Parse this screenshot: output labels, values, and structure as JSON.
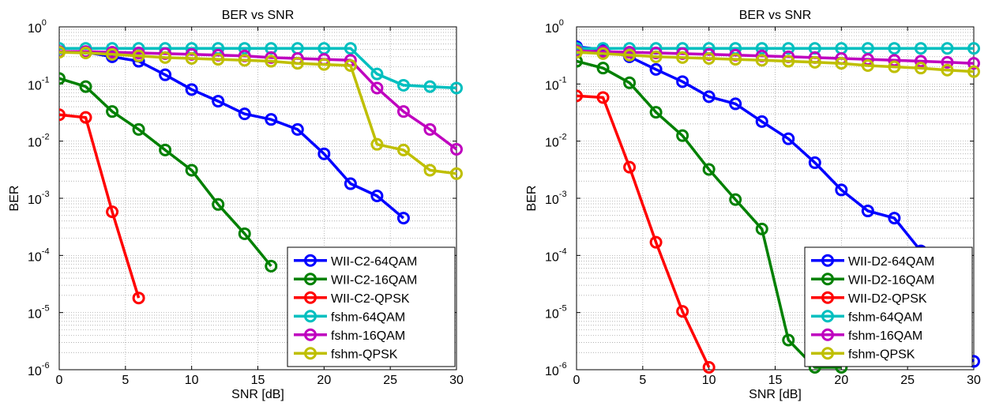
{
  "chart_data": [
    {
      "type": "line",
      "title": "BER vs SNR",
      "xlabel": "SNR [dB]",
      "ylabel": "BER",
      "xlim": [
        0,
        30
      ],
      "ylim": [
        1e-06,
        1
      ],
      "yscale": "log",
      "grid": true,
      "legend": "bottom-right",
      "x_ticks": [
        "0",
        "5",
        "10",
        "15",
        "20",
        "25",
        "30"
      ],
      "y_ticks": [
        {
          "base": "10",
          "exp": "-6"
        },
        {
          "base": "10",
          "exp": "-5"
        },
        {
          "base": "10",
          "exp": "-4"
        },
        {
          "base": "10",
          "exp": "-3"
        },
        {
          "base": "10",
          "exp": "-2"
        },
        {
          "base": "10",
          "exp": "-1"
        },
        {
          "base": "10",
          "exp": "0"
        }
      ],
      "series": [
        {
          "name": "WII-C2-64QAM",
          "color": "#0000ff",
          "x": [
            0,
            2,
            4,
            6,
            8,
            10,
            12,
            14,
            16,
            18,
            20,
            22,
            24,
            26
          ],
          "y": [
            0.37,
            0.36,
            0.3,
            0.25,
            0.145,
            0.08,
            0.05,
            0.03,
            0.024,
            0.016,
            0.006,
            0.0018,
            0.0011,
            0.00045
          ]
        },
        {
          "name": "WII-C2-16QAM",
          "color": "#008000",
          "x": [
            0,
            2,
            4,
            6,
            8,
            10,
            12,
            14,
            16
          ],
          "y": [
            0.125,
            0.09,
            0.033,
            0.016,
            0.007,
            0.0031,
            0.00078,
            0.00024,
            6.5e-05
          ]
        },
        {
          "name": "WII-C2-QPSK",
          "color": "#ff0000",
          "x": [
            0,
            2,
            4,
            6
          ],
          "y": [
            0.029,
            0.026,
            0.00058,
            1.8e-05
          ]
        },
        {
          "name": "fshm-64QAM",
          "color": "#00bfbf",
          "x": [
            0,
            2,
            4,
            6,
            8,
            10,
            12,
            14,
            16,
            18,
            20,
            22,
            24,
            26,
            28,
            30
          ],
          "y": [
            0.42,
            0.42,
            0.42,
            0.42,
            0.42,
            0.42,
            0.42,
            0.42,
            0.42,
            0.42,
            0.42,
            0.42,
            0.15,
            0.095,
            0.09,
            0.085
          ]
        },
        {
          "name": "fshm-16QAM",
          "color": "#bf00bf",
          "x": [
            0,
            2,
            4,
            6,
            8,
            10,
            12,
            14,
            16,
            18,
            20,
            22,
            24,
            26,
            28,
            30
          ],
          "y": [
            0.37,
            0.37,
            0.36,
            0.35,
            0.34,
            0.33,
            0.32,
            0.31,
            0.29,
            0.28,
            0.27,
            0.26,
            0.085,
            0.033,
            0.016,
            0.0072
          ]
        },
        {
          "name": "fshm-QPSK",
          "color": "#bfbf00",
          "x": [
            0,
            2,
            4,
            6,
            8,
            10,
            12,
            14,
            16,
            18,
            20,
            22,
            24,
            26,
            28,
            30
          ],
          "y": [
            0.36,
            0.35,
            0.33,
            0.31,
            0.29,
            0.28,
            0.27,
            0.26,
            0.25,
            0.23,
            0.22,
            0.21,
            0.0088,
            0.007,
            0.0031,
            0.0027
          ]
        }
      ]
    },
    {
      "type": "line",
      "title": "BER vs SNR",
      "xlabel": "SNR [dB]",
      "ylabel": "BER",
      "xlim": [
        0,
        30
      ],
      "ylim": [
        1e-06,
        1
      ],
      "yscale": "log",
      "grid": true,
      "legend": "bottom-right",
      "x_ticks": [
        "0",
        "5",
        "10",
        "15",
        "20",
        "25",
        "30"
      ],
      "y_ticks": [
        {
          "base": "10",
          "exp": "-6"
        },
        {
          "base": "10",
          "exp": "-5"
        },
        {
          "base": "10",
          "exp": "-4"
        },
        {
          "base": "10",
          "exp": "-3"
        },
        {
          "base": "10",
          "exp": "-2"
        },
        {
          "base": "10",
          "exp": "-1"
        },
        {
          "base": "10",
          "exp": "0"
        }
      ],
      "series": [
        {
          "name": "WII-D2-64QAM",
          "color": "#0000ff",
          "x": [
            0,
            2,
            4,
            6,
            8,
            10,
            12,
            14,
            16,
            18,
            20,
            22,
            24,
            26,
            28,
            30
          ],
          "y": [
            0.45,
            0.4,
            0.3,
            0.18,
            0.11,
            0.06,
            0.045,
            0.022,
            0.011,
            0.0042,
            0.0014,
            0.0006,
            0.00045,
            0.00012,
            3.5e-06,
            1.4e-06
          ]
        },
        {
          "name": "WII-D2-16QAM",
          "color": "#008000",
          "x": [
            0,
            2,
            4,
            6,
            8,
            10,
            12,
            14,
            16,
            18,
            20
          ],
          "y": [
            0.25,
            0.19,
            0.105,
            0.032,
            0.0125,
            0.0032,
            0.00095,
            0.00029,
            3.3e-06,
            1.1e-06,
            1.1e-06
          ]
        },
        {
          "name": "WII-D2-QPSK",
          "color": "#ff0000",
          "x": [
            0,
            2,
            4,
            6,
            8,
            10
          ],
          "y": [
            0.062,
            0.058,
            0.0035,
            0.00017,
            1.05e-05,
            1.1e-06
          ]
        },
        {
          "name": "fshm-64QAM",
          "color": "#00bfbf",
          "x": [
            0,
            2,
            4,
            6,
            8,
            10,
            12,
            14,
            16,
            18,
            20,
            22,
            24,
            26,
            28,
            30
          ],
          "y": [
            0.42,
            0.42,
            0.42,
            0.42,
            0.42,
            0.42,
            0.42,
            0.42,
            0.42,
            0.42,
            0.42,
            0.42,
            0.42,
            0.42,
            0.42,
            0.42
          ]
        },
        {
          "name": "fshm-16QAM",
          "color": "#bf00bf",
          "x": [
            0,
            2,
            4,
            6,
            8,
            10,
            12,
            14,
            16,
            18,
            20,
            22,
            24,
            26,
            28,
            30
          ],
          "y": [
            0.38,
            0.37,
            0.36,
            0.35,
            0.34,
            0.33,
            0.32,
            0.31,
            0.3,
            0.29,
            0.28,
            0.27,
            0.26,
            0.25,
            0.24,
            0.23
          ]
        },
        {
          "name": "fshm-QPSK",
          "color": "#bfbf00",
          "x": [
            0,
            2,
            4,
            6,
            8,
            10,
            12,
            14,
            16,
            18,
            20,
            22,
            24,
            26,
            28,
            30
          ],
          "y": [
            0.36,
            0.34,
            0.32,
            0.3,
            0.29,
            0.28,
            0.27,
            0.26,
            0.25,
            0.24,
            0.23,
            0.21,
            0.2,
            0.19,
            0.175,
            0.165
          ]
        }
      ]
    }
  ]
}
